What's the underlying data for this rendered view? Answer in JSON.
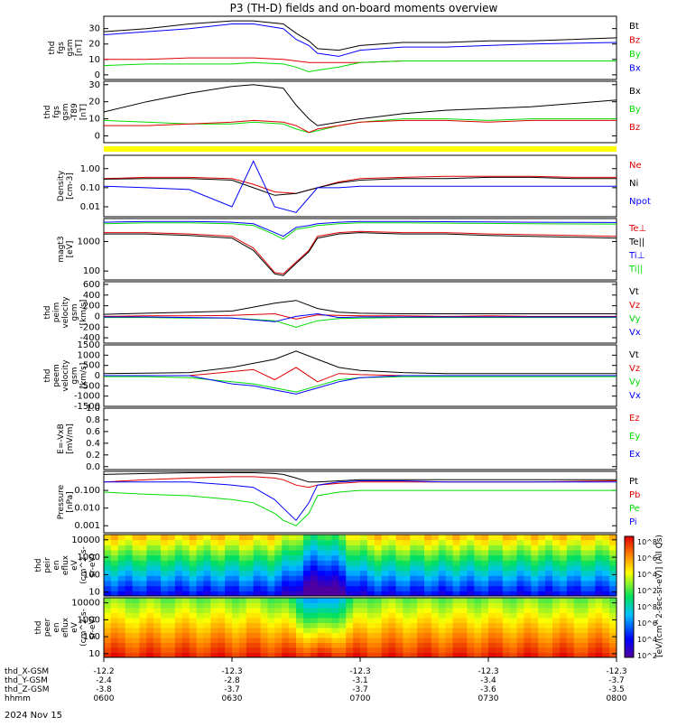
{
  "title": "P3 (TH-D) fields and on-board moments overview",
  "date_label": "2024 Nov 15",
  "colors": {
    "black": "#000000",
    "red": "#e00000",
    "green": "#00dd00",
    "blue": "#0000ff",
    "yellow": "#ffff00"
  },
  "chart_data": [
    {
      "type": "line",
      "ylabel": [
        "thd",
        "fgs",
        "gsm",
        "[nT]"
      ],
      "yticks": [
        "0",
        "10",
        "20",
        "30"
      ],
      "ylim": [
        -3,
        38
      ],
      "legend": [
        {
          "name": "Bt",
          "color": "#000000"
        },
        {
          "name": "Bz",
          "color": "#e00000"
        },
        {
          "name": "By",
          "color": "#00dd00"
        },
        {
          "name": "Bx",
          "color": "#0000ff"
        }
      ],
      "x": [
        0,
        10,
        20,
        30,
        35,
        42,
        45,
        48,
        50,
        55,
        60,
        70,
        80,
        90,
        100,
        120
      ],
      "series": [
        {
          "name": "Bt",
          "values": [
            28,
            30,
            33,
            35,
            35,
            33,
            27,
            22,
            17,
            16,
            19,
            21,
            21,
            22,
            22,
            24
          ]
        },
        {
          "name": "Bz",
          "values": [
            10,
            10,
            11,
            11,
            11,
            10,
            9,
            8,
            8,
            8,
            8,
            9,
            9,
            9,
            9,
            9
          ]
        },
        {
          "name": "By",
          "values": [
            6,
            7,
            7,
            7,
            8,
            7,
            5,
            2,
            3,
            5,
            8,
            9,
            9,
            9,
            9,
            9
          ]
        },
        {
          "name": "Bx",
          "values": [
            26,
            28,
            30,
            33,
            33,
            30,
            23,
            19,
            14,
            12,
            16,
            18,
            18,
            19,
            20,
            21
          ]
        }
      ]
    },
    {
      "type": "line",
      "ylabel": [
        "thd",
        "fgs",
        "gsm",
        "-T89",
        "[nT]"
      ],
      "yticks": [
        "0",
        "10",
        "20",
        "30"
      ],
      "ylim": [
        -4,
        32
      ],
      "legend": [
        {
          "name": "Bx",
          "color": "#000000"
        },
        {
          "name": "By",
          "color": "#00dd00"
        },
        {
          "name": "Bz",
          "color": "#e00000"
        }
      ],
      "x": [
        0,
        10,
        20,
        30,
        35,
        42,
        45,
        48,
        50,
        55,
        60,
        70,
        80,
        90,
        100,
        120
      ],
      "series": [
        {
          "name": "Bx",
          "values": [
            14,
            20,
            25,
            29,
            30,
            28,
            18,
            10,
            6,
            8,
            10,
            13,
            15,
            16,
            17,
            21
          ]
        },
        {
          "name": "By",
          "values": [
            9,
            8,
            7,
            7,
            8,
            7,
            4,
            2,
            3,
            6,
            8,
            10,
            10,
            9,
            10,
            10
          ]
        },
        {
          "name": "Bz",
          "values": [
            6,
            6,
            7,
            8,
            9,
            8,
            6,
            2,
            4,
            6,
            8,
            9,
            9,
            8,
            9,
            9
          ]
        }
      ]
    },
    {
      "type": "line",
      "ylabel": [
        "Density",
        "[cm-3]"
      ],
      "yticks": [
        "1.00",
        "0.10",
        "0.01"
      ],
      "ylog": true,
      "ylim": [
        0.003,
        5
      ],
      "legend": [
        {
          "name": "Ne",
          "color": "#e00000"
        },
        {
          "name": "Ni",
          "color": "#000000"
        },
        {
          "name": "Npot",
          "color": "#0000ff"
        }
      ],
      "x": [
        0,
        10,
        20,
        30,
        35,
        40,
        45,
        50,
        55,
        60,
        70,
        80,
        90,
        100,
        110,
        120
      ],
      "series": [
        {
          "name": "Ne",
          "values": [
            0.3,
            0.35,
            0.35,
            0.3,
            0.15,
            0.06,
            0.05,
            0.1,
            0.2,
            0.3,
            0.35,
            0.4,
            0.4,
            0.4,
            0.35,
            0.35
          ]
        },
        {
          "name": "Ni",
          "values": [
            0.28,
            0.3,
            0.3,
            0.25,
            0.1,
            0.04,
            0.05,
            0.1,
            0.18,
            0.25,
            0.3,
            0.3,
            0.35,
            0.35,
            0.3,
            0.3
          ]
        },
        {
          "name": "Npot",
          "values": [
            0.12,
            0.1,
            0.08,
            0.01,
            2.5,
            0.01,
            0.005,
            0.1,
            0.1,
            0.12,
            0.12,
            0.12,
            0.12,
            0.12,
            0.12,
            0.12
          ]
        }
      ]
    },
    {
      "type": "line",
      "ylabel": [
        "magt3",
        "[eV]"
      ],
      "yticks": [
        "1000",
        "100"
      ],
      "ylog": true,
      "ylim": [
        50,
        6000
      ],
      "legend": [
        {
          "name": "Te⊥",
          "color": "#e00000"
        },
        {
          "name": "Te||",
          "color": "#000000"
        },
        {
          "name": "Ti⊥",
          "color": "#0000ff"
        },
        {
          "name": "Ti||",
          "color": "#00dd00"
        }
      ],
      "x": [
        0,
        10,
        20,
        30,
        35,
        40,
        42,
        45,
        48,
        50,
        55,
        60,
        70,
        80,
        90,
        100,
        120
      ],
      "series": [
        {
          "name": "Te⊥",
          "values": [
            2000,
            2000,
            1800,
            1500,
            600,
            90,
            80,
            200,
            500,
            1500,
            2000,
            2200,
            2000,
            2000,
            1800,
            1700,
            1500
          ]
        },
        {
          "name": "Te||",
          "values": [
            1800,
            1800,
            1600,
            1300,
            500,
            80,
            70,
            180,
            450,
            1300,
            1800,
            2000,
            1800,
            1800,
            1600,
            1500,
            1300
          ]
        },
        {
          "name": "Ti⊥",
          "values": [
            4500,
            4800,
            4800,
            4500,
            4000,
            2000,
            1500,
            3000,
            3500,
            4000,
            4500,
            4800,
            4800,
            4700,
            4600,
            4500,
            4400
          ]
        },
        {
          "name": "Ti||",
          "values": [
            4000,
            4300,
            4300,
            4000,
            3500,
            1700,
            1200,
            2600,
            3000,
            3500,
            4000,
            4300,
            4300,
            4200,
            4100,
            4000,
            3900
          ]
        }
      ]
    },
    {
      "type": "line",
      "ylabel": [
        "thd",
        "peim",
        "velocity",
        "gsm",
        "[km/s]"
      ],
      "yticks": [
        "600",
        "400",
        "200",
        "0",
        "-200",
        "-400"
      ],
      "ylim": [
        -500,
        650
      ],
      "legend": [
        {
          "name": "Vt",
          "color": "#000000"
        },
        {
          "name": "Vz",
          "color": "#e00000"
        },
        {
          "name": "Vy",
          "color": "#00dd00"
        },
        {
          "name": "Vx",
          "color": "#0000ff"
        }
      ],
      "x": [
        0,
        10,
        20,
        30,
        40,
        45,
        50,
        55,
        60,
        70,
        80,
        90,
        100,
        120
      ],
      "series": [
        {
          "name": "Vt",
          "values": [
            40,
            60,
            80,
            100,
            250,
            300,
            150,
            80,
            60,
            50,
            50,
            50,
            50,
            50
          ]
        },
        {
          "name": "Vz",
          "values": [
            0,
            10,
            10,
            20,
            50,
            -50,
            30,
            20,
            10,
            10,
            0,
            10,
            0,
            0
          ]
        },
        {
          "name": "Vy",
          "values": [
            -20,
            -20,
            -30,
            -30,
            -80,
            -200,
            -80,
            -40,
            -30,
            -20,
            -20,
            -20,
            -20,
            -20
          ]
        },
        {
          "name": "Vx",
          "values": [
            -10,
            -10,
            -20,
            -30,
            -100,
            0,
            50,
            -20,
            -10,
            -10,
            -10,
            -10,
            -10,
            -10
          ]
        }
      ]
    },
    {
      "type": "line",
      "ylabel": [
        "thd",
        "peem",
        "velocity",
        "gsm",
        "[km/s]"
      ],
      "yticks": [
        "1500",
        "1000",
        "500",
        "0",
        "-500",
        "-1000",
        "-1500"
      ],
      "ylim": [
        -1500,
        1500
      ],
      "legend": [
        {
          "name": "Vt",
          "color": "#000000"
        },
        {
          "name": "Vz",
          "color": "#e00000"
        },
        {
          "name": "Vy",
          "color": "#00dd00"
        },
        {
          "name": "Vx",
          "color": "#0000ff"
        }
      ],
      "x": [
        0,
        10,
        20,
        30,
        35,
        40,
        45,
        50,
        55,
        60,
        70,
        80,
        90,
        100,
        120
      ],
      "series": [
        {
          "name": "Vt",
          "values": [
            100,
            120,
            150,
            400,
            600,
            800,
            1200,
            800,
            400,
            250,
            150,
            100,
            100,
            100,
            100
          ]
        },
        {
          "name": "Vz",
          "values": [
            0,
            0,
            0,
            200,
            300,
            -200,
            400,
            -300,
            100,
            50,
            0,
            0,
            0,
            0,
            0
          ]
        },
        {
          "name": "Vy",
          "values": [
            -50,
            -50,
            -100,
            -300,
            -400,
            -600,
            -800,
            -500,
            -200,
            -100,
            -50,
            -50,
            -50,
            -50,
            -50
          ]
        },
        {
          "name": "Vx",
          "values": [
            0,
            0,
            0,
            -400,
            -500,
            -700,
            -900,
            -600,
            -300,
            -100,
            0,
            0,
            0,
            0,
            0
          ]
        }
      ]
    },
    {
      "type": "line",
      "ylabel": [
        "E=-VxB",
        "[mV/m]"
      ],
      "yticks": [
        "1.0",
        "0.8",
        "0.6",
        "0.4",
        "0.2",
        "0.0"
      ],
      "ylim": [
        -0.05,
        1.0
      ],
      "legend": [
        {
          "name": "Ez",
          "color": "#e00000"
        },
        {
          "name": "Ey",
          "color": "#00dd00"
        },
        {
          "name": "Ex",
          "color": "#0000ff"
        }
      ],
      "x": [
        0,
        120
      ],
      "series": []
    },
    {
      "type": "line",
      "ylabel": [
        "Pressure",
        "[nPa]"
      ],
      "yticks": [
        "0.100",
        "0.010",
        "0.001"
      ],
      "ylog": true,
      "ylim": [
        0.0004,
        1.2
      ],
      "legend": [
        {
          "name": "Pt",
          "color": "#000000"
        },
        {
          "name": "Pb",
          "color": "#e00000"
        },
        {
          "name": "Pe",
          "color": "#00dd00"
        },
        {
          "name": "Pi",
          "color": "#0000ff"
        }
      ],
      "x": [
        0,
        10,
        20,
        30,
        35,
        40,
        42,
        45,
        48,
        50,
        55,
        60,
        70,
        80,
        90,
        100,
        120
      ],
      "series": [
        {
          "name": "Pt",
          "values": [
            0.8,
            0.9,
            1,
            1,
            1,
            0.9,
            0.8,
            0.5,
            0.3,
            0.3,
            0.35,
            0.4,
            0.4,
            0.4,
            0.4,
            0.4,
            0.4
          ]
        },
        {
          "name": "Pb",
          "values": [
            0.3,
            0.4,
            0.5,
            0.6,
            0.6,
            0.5,
            0.4,
            0.2,
            0.15,
            0.2,
            0.25,
            0.3,
            0.3,
            0.3,
            0.3,
            0.3,
            0.35
          ]
        },
        {
          "name": "Pe",
          "values": [
            0.08,
            0.06,
            0.05,
            0.03,
            0.02,
            0.005,
            0.002,
            0.001,
            0.005,
            0.05,
            0.08,
            0.1,
            0.1,
            0.1,
            0.1,
            0.1,
            0.1
          ]
        },
        {
          "name": "Pi",
          "values": [
            0.3,
            0.3,
            0.3,
            0.2,
            0.15,
            0.03,
            0.01,
            0.002,
            0.02,
            0.2,
            0.3,
            0.35,
            0.35,
            0.3,
            0.3,
            0.3,
            0.3
          ]
        }
      ]
    },
    {
      "type": "heatmap",
      "ylabel": [
        "thd",
        "peir",
        "en",
        "eflux",
        "eV",
        "(cm^2-s-",
        "sr-eV)"
      ],
      "yticks": [
        "10000",
        "1000",
        "100",
        "10"
      ],
      "ylim": [
        6,
        20000
      ],
      "ylog": true,
      "rows": 12,
      "cols": 72
    },
    {
      "type": "heatmap",
      "ylabel": [
        "thd",
        "peer",
        "en",
        "eflux",
        "eV",
        "(cm^2-s-",
        "sr-eV)"
      ],
      "yticks": [
        "10000",
        "1000",
        "100",
        "10"
      ],
      "ylim": [
        6,
        20000
      ],
      "ylog": true,
      "rows": 12,
      "cols": 72
    }
  ],
  "colorbar": {
    "label": "[eV/(cm^2-sec-sr-eV)] (All Qs)",
    "ticks": [
      "10^8",
      "10^6",
      "10^4",
      "10^2",
      "10^8",
      "10^6",
      "10^4",
      "10^2"
    ]
  },
  "x_axis": {
    "rows": [
      {
        "label": "thd_X-GSM",
        "values": [
          "-12.2",
          "-12.3",
          "-12.3",
          "-12.3",
          "-12.3"
        ]
      },
      {
        "label": "thd_Y-GSM",
        "values": [
          "-2.4",
          "-2.8",
          "-3.1",
          "-3.4",
          "-3.7"
        ]
      },
      {
        "label": "thd_Z-GSM",
        "values": [
          "-3.8",
          "-3.7",
          "-3.7",
          "-3.6",
          "-3.5"
        ]
      },
      {
        "label": "hhmm",
        "values": [
          "0600",
          "0630",
          "0700",
          "0730",
          "0800"
        ]
      }
    ]
  }
}
